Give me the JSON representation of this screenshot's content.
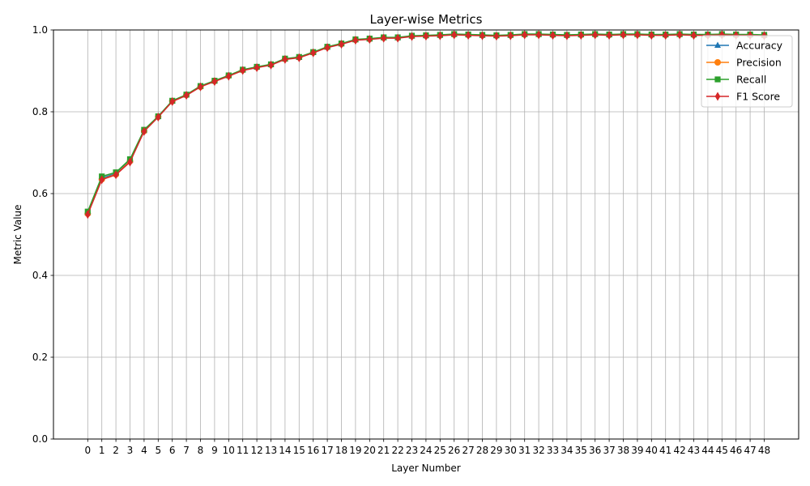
{
  "chart_data": {
    "type": "line",
    "title": "Layer-wise Metrics",
    "xlabel": "Layer Number",
    "ylabel": "Metric Value",
    "ylim": [
      0.0,
      1.0
    ],
    "yticks": [
      "0.0",
      "0.2",
      "0.4",
      "0.6",
      "0.8",
      "1.0"
    ],
    "grid": true,
    "legend_position": "top-right",
    "x": [
      0,
      1,
      2,
      3,
      4,
      5,
      6,
      7,
      8,
      9,
      10,
      11,
      12,
      13,
      14,
      15,
      16,
      17,
      18,
      19,
      20,
      21,
      22,
      23,
      24,
      25,
      26,
      27,
      28,
      29,
      30,
      31,
      32,
      33,
      34,
      35,
      36,
      37,
      38,
      39,
      40,
      41,
      42,
      43,
      44,
      45,
      46,
      47,
      48
    ],
    "series": [
      {
        "name": "Accuracy",
        "color": "#1f77b4",
        "marker": "triangle",
        "values": [
          0.553,
          0.638,
          0.649,
          0.681,
          0.754,
          0.788,
          0.826,
          0.841,
          0.862,
          0.875,
          0.888,
          0.902,
          0.909,
          0.915,
          0.929,
          0.933,
          0.945,
          0.958,
          0.966,
          0.976,
          0.978,
          0.981,
          0.981,
          0.985,
          0.986,
          0.987,
          0.989,
          0.988,
          0.987,
          0.986,
          0.987,
          0.989,
          0.989,
          0.988,
          0.987,
          0.988,
          0.989,
          0.988,
          0.989,
          0.989,
          0.988,
          0.988,
          0.989,
          0.988,
          0.988,
          0.989,
          0.988,
          0.988,
          0.987
        ]
      },
      {
        "name": "Precision",
        "color": "#ff7f0e",
        "marker": "circle",
        "values": [
          0.551,
          0.635,
          0.647,
          0.679,
          0.753,
          0.788,
          0.826,
          0.841,
          0.861,
          0.875,
          0.888,
          0.902,
          0.909,
          0.915,
          0.929,
          0.933,
          0.945,
          0.958,
          0.966,
          0.976,
          0.978,
          0.981,
          0.981,
          0.985,
          0.986,
          0.987,
          0.989,
          0.988,
          0.987,
          0.986,
          0.987,
          0.989,
          0.989,
          0.988,
          0.987,
          0.988,
          0.989,
          0.988,
          0.989,
          0.989,
          0.988,
          0.988,
          0.989,
          0.988,
          0.988,
          0.989,
          0.988,
          0.988,
          0.987
        ]
      },
      {
        "name": "Recall",
        "color": "#2ca02c",
        "marker": "square",
        "values": [
          0.556,
          0.642,
          0.652,
          0.684,
          0.756,
          0.789,
          0.827,
          0.842,
          0.863,
          0.876,
          0.889,
          0.903,
          0.91,
          0.916,
          0.93,
          0.934,
          0.946,
          0.959,
          0.967,
          0.977,
          0.979,
          0.982,
          0.982,
          0.986,
          0.987,
          0.988,
          0.99,
          0.989,
          0.988,
          0.987,
          0.988,
          0.99,
          0.99,
          0.989,
          0.988,
          0.989,
          0.99,
          0.989,
          0.99,
          0.99,
          0.989,
          0.989,
          0.99,
          0.989,
          0.989,
          0.99,
          0.989,
          0.989,
          0.988
        ]
      },
      {
        "name": "F1 Score",
        "color": "#d62728",
        "marker": "diamond",
        "values": [
          0.549,
          0.634,
          0.646,
          0.677,
          0.752,
          0.787,
          0.825,
          0.84,
          0.861,
          0.874,
          0.887,
          0.901,
          0.908,
          0.914,
          0.928,
          0.932,
          0.944,
          0.957,
          0.965,
          0.975,
          0.977,
          0.98,
          0.98,
          0.984,
          0.985,
          0.986,
          0.988,
          0.987,
          0.986,
          0.985,
          0.986,
          0.988,
          0.988,
          0.987,
          0.986,
          0.987,
          0.988,
          0.987,
          0.988,
          0.988,
          0.987,
          0.987,
          0.988,
          0.987,
          0.987,
          0.988,
          0.987,
          0.987,
          0.986
        ]
      }
    ]
  }
}
